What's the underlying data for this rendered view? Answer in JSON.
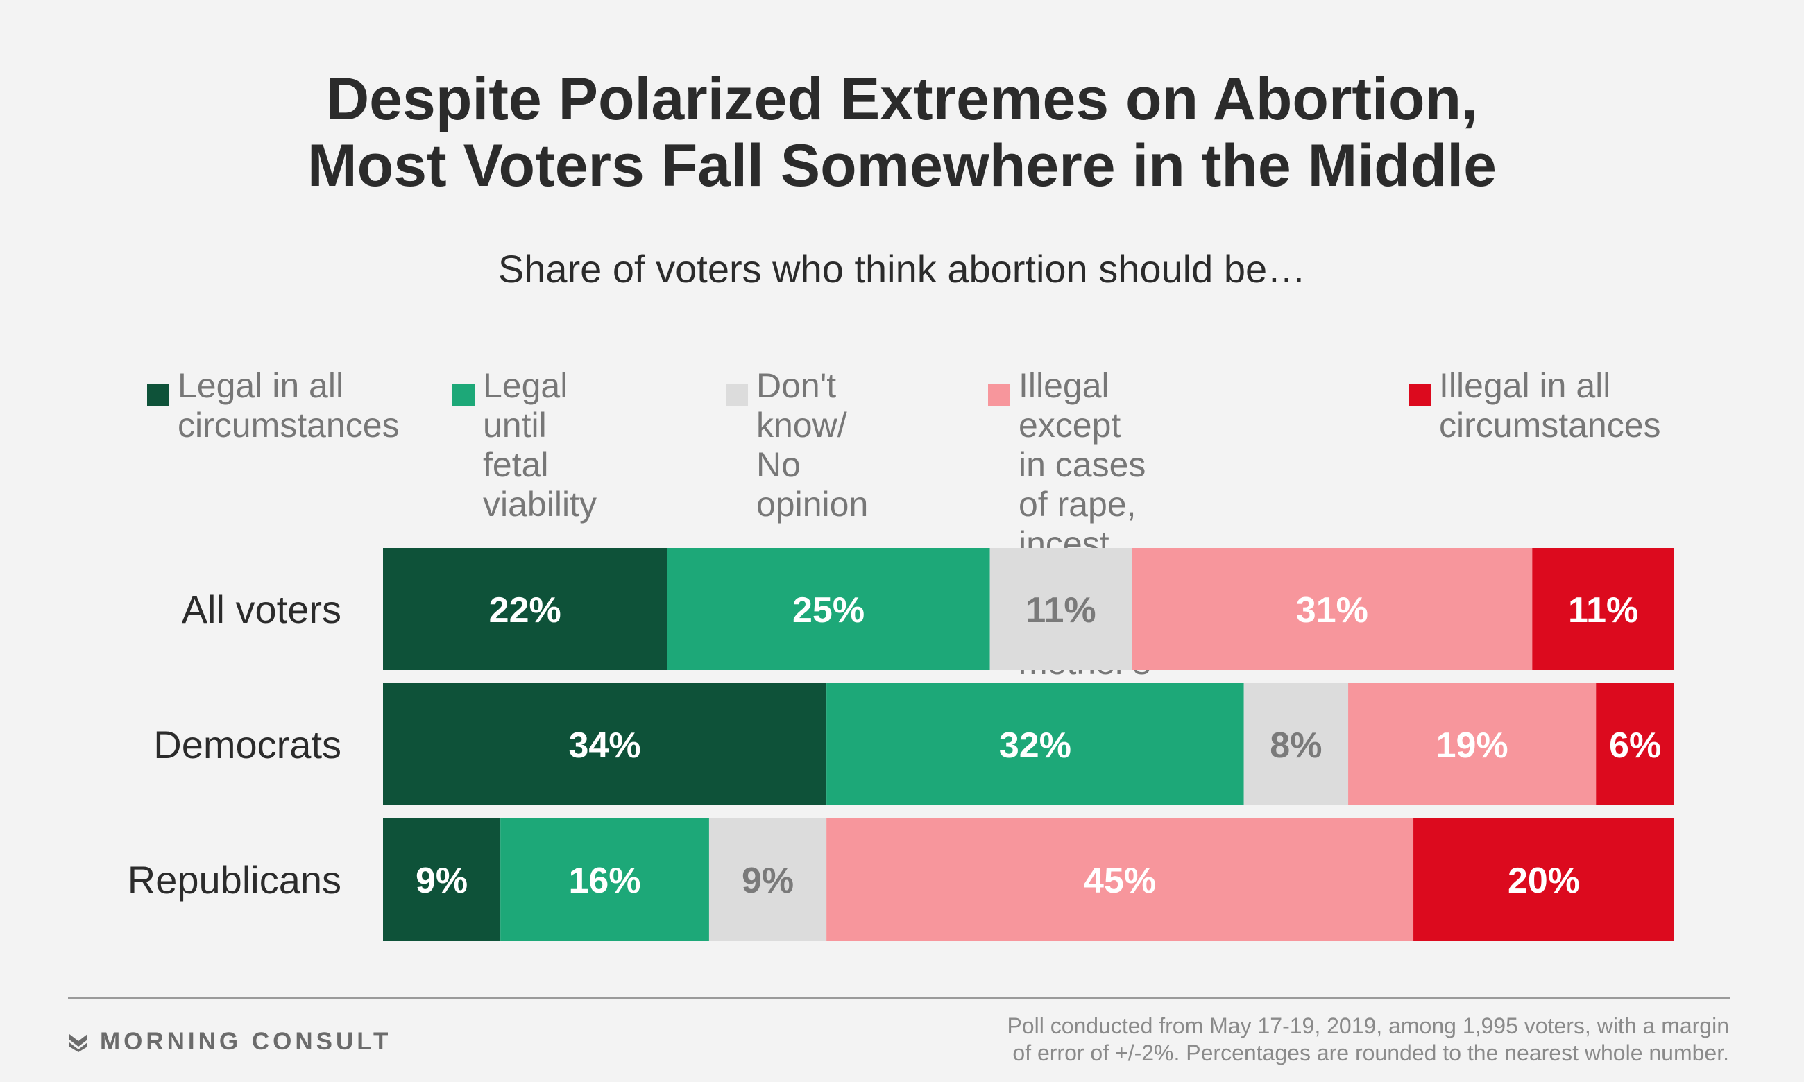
{
  "title_lines": [
    "Despite Polarized Extremes on Abortion,",
    "Most Voters Fall Somewhere in the Middle"
  ],
  "subtitle": "Share of voters who think abortion should be…",
  "footer": {
    "brand": "MORNING CONSULT",
    "note_lines": [
      "Poll conducted from May 17-19, 2019, among 1,995 voters, with a margin",
      "of error of +/-2%. Percentages are rounded to the nearest whole number."
    ]
  },
  "chart_data": {
    "type": "bar",
    "orientation": "horizontal",
    "stacked": true,
    "legend_position": "top",
    "grid": false,
    "categories": [
      "All voters",
      "Democrats",
      "Republicans"
    ],
    "series": [
      {
        "name": "Legal in all\ncircumstances",
        "color": "#0e5239",
        "label_color": "#ffffff",
        "values": [
          22,
          34,
          9
        ]
      },
      {
        "name": "Legal until\nfetal viability",
        "color": "#1da878",
        "label_color": "#ffffff",
        "values": [
          25,
          32,
          16
        ]
      },
      {
        "name": "Don't know/\nNo opinion",
        "color": "#dcdcdc",
        "label_color": "#7a7a7a",
        "values": [
          11,
          8,
          9
        ]
      },
      {
        "name": "Illegal except in cases\nof rape, incest and\nrisk to mother's life",
        "color": "#f7969c",
        "label_color": "#ffffff",
        "values": [
          31,
          19,
          45
        ]
      },
      {
        "name": "Illegal in all\ncircumstances",
        "color": "#dc0a1e",
        "label_color": "#ffffff",
        "values": [
          11,
          6,
          20
        ]
      }
    ],
    "value_suffix": "%"
  }
}
